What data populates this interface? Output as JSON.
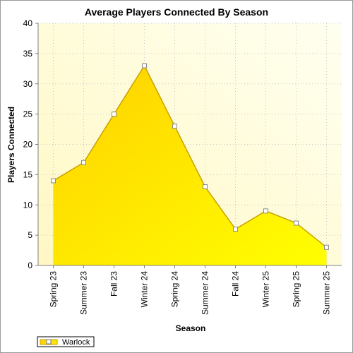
{
  "chart_data": {
    "type": "area",
    "title": "Average Players Connected By Season",
    "xlabel": "Season",
    "ylabel": "Players Connected",
    "categories": [
      "Spring 23",
      "Summer 23",
      "Fall 23",
      "Winter 24",
      "Spring 24",
      "Summer 24",
      "Fall 24",
      "Winter 25",
      "Spring 25",
      "Summer 25"
    ],
    "series": [
      {
        "name": "Warlock",
        "values": [
          14,
          17,
          25,
          33,
          23,
          13,
          6,
          9,
          7,
          3
        ],
        "color": "#ffd700",
        "line_color": "#c8a000"
      }
    ],
    "ylim": [
      0,
      40
    ],
    "yticks": [
      0,
      5,
      10,
      15,
      20,
      25,
      30,
      35,
      40
    ],
    "grid": true,
    "legend_position": "bottom-left",
    "plot_background": [
      "#fffbd2",
      "#ffffee"
    ]
  }
}
